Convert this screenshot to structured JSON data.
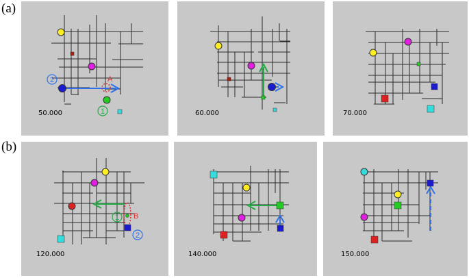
{
  "rows": [
    {
      "label": "(a)",
      "panels": [
        {
          "time": "50.000"
        },
        {
          "time": "60.000"
        },
        {
          "time": "70.000"
        }
      ]
    },
    {
      "label": "(b)",
      "panels": [
        {
          "time": "120.000"
        },
        {
          "time": "140.000"
        },
        {
          "time": "150.000"
        }
      ]
    }
  ],
  "annotations": {
    "marker_A": "A",
    "marker_B": "B",
    "agent_1": "①",
    "agent_2": "②"
  },
  "colors": {
    "panel_bg": "#c8c8c8",
    "grid": "#2a2a2a",
    "yellow": "#ffee22",
    "magenta": "#e020e0",
    "blue": "#1a1ad0",
    "green": "#22cc22",
    "red": "#dd2020",
    "cyan": "#33dddd",
    "darkred": "#aa2010",
    "arrow_blue": "#2f6fe8",
    "arrow_green": "#22aa44",
    "label_red": "#e03030"
  }
}
